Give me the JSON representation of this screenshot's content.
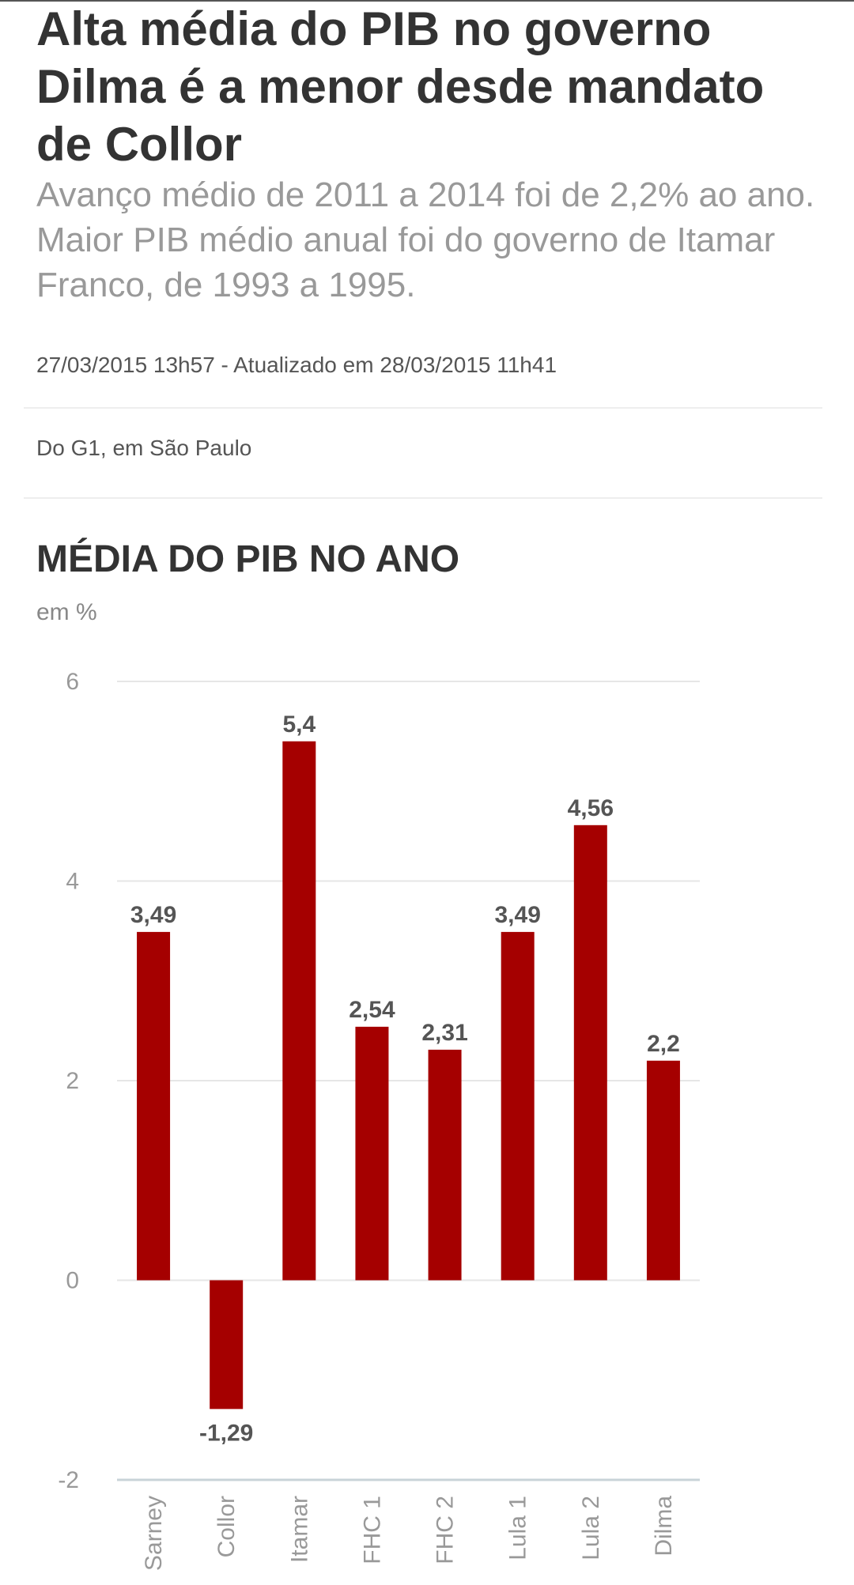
{
  "article": {
    "headline": "Alta média do PIB no governo Dilma é a menor desde mandato de Collor",
    "subtitle": "Avanço médio de 2011 a 2014 foi de 2,2% ao ano. Maior PIB médio anual foi do governo de Itamar Franco, de 1993 a 1995.",
    "dateline": "27/03/2015 13h57 - Atualizado em 28/03/2015 11h41",
    "byline": "Do G1, em São Paulo"
  },
  "chart_data": {
    "type": "bar",
    "title": "MÉDIA DO PIB NO ANO",
    "subtitle": "em %",
    "categories": [
      "Sarney",
      "Collor",
      "Itamar",
      "FHC 1",
      "FHC 2",
      "Lula 1",
      "Lula 2",
      "Dilma"
    ],
    "values": [
      3.49,
      -1.29,
      5.4,
      2.54,
      2.31,
      3.49,
      4.56,
      2.2
    ],
    "value_labels": [
      "3,49",
      "-1,29",
      "5,4",
      "2,54",
      "2,31",
      "3,49",
      "4,56",
      "2,2"
    ],
    "yticks": [
      -2,
      0,
      2,
      4,
      6
    ],
    "ylim": [
      -2,
      6
    ],
    "xlabel": "",
    "ylabel": "",
    "grid": true,
    "legend": "none",
    "bar_color": "#a50000",
    "grid_color": "#e6e6e6",
    "axis_color": "#c8d3d8"
  }
}
